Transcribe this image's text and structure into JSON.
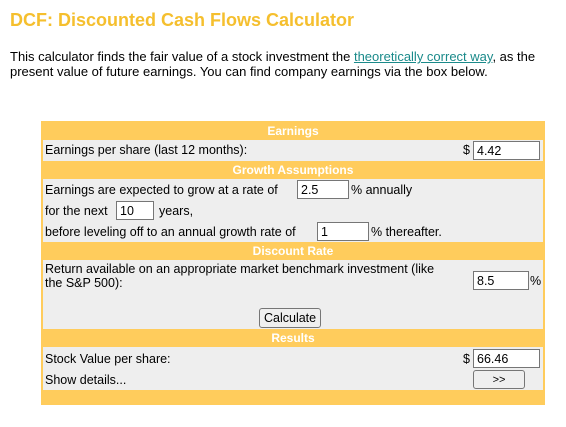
{
  "title": "DCF: Discounted Cash Flows Calculator",
  "intro": {
    "before_link": "This calculator finds the fair value of a stock investment the ",
    "link_text": "theoretically correct way",
    "after_link": ", as the present value of future earnings. You can find company earnings via the box below."
  },
  "earnings": {
    "header": "Earnings",
    "eps_label": "Earnings per share (last 12 months):",
    "currency": "$",
    "eps_value": "4.42"
  },
  "growth": {
    "header": "Growth Assumptions",
    "rate_label": "Earnings are expected to grow at a rate of",
    "rate_value": "2.5",
    "rate_suffix": "% annually",
    "years_prefix": "for the next",
    "years_value": "10",
    "years_suffix": "years,",
    "terminal_label": "before leveling off to an annual growth rate of",
    "terminal_value": "1",
    "terminal_suffix": "% thereafter."
  },
  "discount": {
    "header": "Discount Rate",
    "return_label_line1": "Return available on an appropriate market benchmark investment (like",
    "return_label_line2": "the S&P 500):",
    "return_value": "8.5",
    "return_suffix": "%",
    "calculate_label": "Calculate"
  },
  "results": {
    "header": "Results",
    "value_label": "Stock Value per share:",
    "currency": "$",
    "value": "66.46",
    "details_label": "Show details...",
    "details_button": ">>"
  },
  "colors": {
    "title": "#f5bf2e",
    "panel": "#ffcc5c",
    "row": "#eeeeee",
    "link": "#1a8a8a"
  }
}
